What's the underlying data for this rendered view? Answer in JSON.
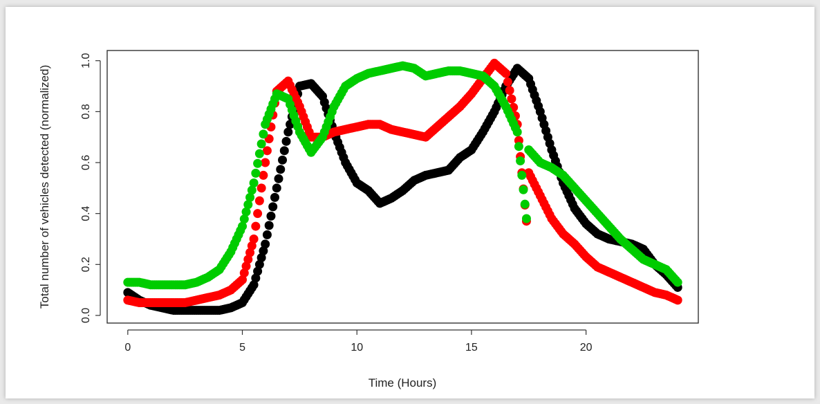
{
  "chart_data": {
    "type": "scatter",
    "title": "",
    "xlabel": "Time (Hours)",
    "ylabel": "Total number of vehicles detected (normalized)",
    "xlim": [
      -0.9,
      24.9
    ],
    "ylim": [
      -0.03,
      1.04
    ],
    "xticks": [
      0,
      5,
      10,
      15,
      20
    ],
    "xtick_labels": [
      "0",
      "5",
      "10",
      "15",
      "20"
    ],
    "yticks": [
      0.0,
      0.2,
      0.4,
      0.6,
      0.8,
      1.0
    ],
    "ytick_labels": [
      "0.0",
      "0.2",
      "0.4",
      "0.6",
      "0.8",
      "1.0"
    ],
    "grid": false,
    "legend": "none",
    "series": [
      {
        "color": "#000000",
        "x": [
          0,
          0.5,
          1,
          1.5,
          2,
          2.5,
          3,
          3.5,
          4,
          4.5,
          5,
          5.5,
          6,
          6.5,
          7,
          7.5,
          8,
          8.5,
          9,
          9.5,
          10,
          10.5,
          11,
          11.5,
          12,
          12.5,
          13,
          13.5,
          14,
          14.5,
          15,
          15.5,
          16,
          16.5,
          17,
          17.5,
          18,
          18.5,
          19,
          19.5,
          20,
          20.5,
          21,
          21.5,
          22,
          22.5,
          23,
          23.5,
          24
        ],
        "y": [
          0.09,
          0.06,
          0.04,
          0.03,
          0.02,
          0.02,
          0.02,
          0.02,
          0.02,
          0.03,
          0.05,
          0.12,
          0.28,
          0.5,
          0.72,
          0.9,
          0.91,
          0.86,
          0.72,
          0.6,
          0.52,
          0.49,
          0.44,
          0.46,
          0.49,
          0.53,
          0.55,
          0.56,
          0.57,
          0.62,
          0.65,
          0.72,
          0.8,
          0.9,
          0.97,
          0.93,
          0.8,
          0.65,
          0.52,
          0.42,
          0.36,
          0.32,
          0.3,
          0.29,
          0.28,
          0.26,
          0.2,
          0.16,
          0.11
        ]
      },
      {
        "color": "#ff0000",
        "x": [
          0,
          0.5,
          1,
          1.5,
          2,
          2.5,
          3,
          3.5,
          4,
          4.5,
          5,
          5.5,
          6,
          6.5,
          7,
          7.5,
          8,
          8.5,
          9,
          9.5,
          10,
          10.5,
          11,
          11.5,
          12,
          12.5,
          13,
          13.5,
          14,
          14.5,
          15,
          15.5,
          16,
          16.5,
          17,
          17.4,
          17.5,
          18,
          18.5,
          19,
          19.5,
          20,
          20.5,
          21,
          21.5,
          22,
          22.5,
          23,
          23.5,
          24
        ],
        "y": [
          0.06,
          0.05,
          0.05,
          0.05,
          0.05,
          0.05,
          0.06,
          0.07,
          0.08,
          0.1,
          0.14,
          0.3,
          0.6,
          0.88,
          0.92,
          0.82,
          0.7,
          0.7,
          0.72,
          0.73,
          0.74,
          0.75,
          0.75,
          0.73,
          0.72,
          0.71,
          0.7,
          0.74,
          0.78,
          0.82,
          0.87,
          0.93,
          0.99,
          0.95,
          0.75,
          0.37,
          0.56,
          0.47,
          0.38,
          0.32,
          0.28,
          0.23,
          0.19,
          0.17,
          0.15,
          0.13,
          0.11,
          0.09,
          0.08,
          0.06
        ]
      },
      {
        "color": "#00cc00",
        "x": [
          0,
          0.5,
          1,
          1.5,
          2,
          2.5,
          3,
          3.5,
          4,
          4.5,
          5,
          5.5,
          6,
          6.5,
          7,
          7.5,
          8,
          8.5,
          9,
          9.5,
          10,
          10.5,
          11,
          11.5,
          12,
          12.5,
          13,
          13.5,
          14,
          14.5,
          15,
          15.5,
          16,
          16.5,
          17,
          17.4,
          17.5,
          18,
          18.5,
          19,
          19.5,
          20,
          20.5,
          21,
          21.5,
          22,
          22.5,
          23,
          23.5,
          24
        ],
        "y": [
          0.13,
          0.13,
          0.12,
          0.12,
          0.12,
          0.12,
          0.13,
          0.15,
          0.18,
          0.25,
          0.35,
          0.52,
          0.75,
          0.87,
          0.85,
          0.72,
          0.64,
          0.7,
          0.82,
          0.9,
          0.93,
          0.95,
          0.96,
          0.97,
          0.98,
          0.97,
          0.94,
          0.95,
          0.96,
          0.96,
          0.95,
          0.94,
          0.9,
          0.82,
          0.72,
          0.38,
          0.65,
          0.6,
          0.58,
          0.55,
          0.5,
          0.45,
          0.4,
          0.35,
          0.3,
          0.26,
          0.22,
          0.2,
          0.18,
          0.13
        ]
      }
    ]
  }
}
